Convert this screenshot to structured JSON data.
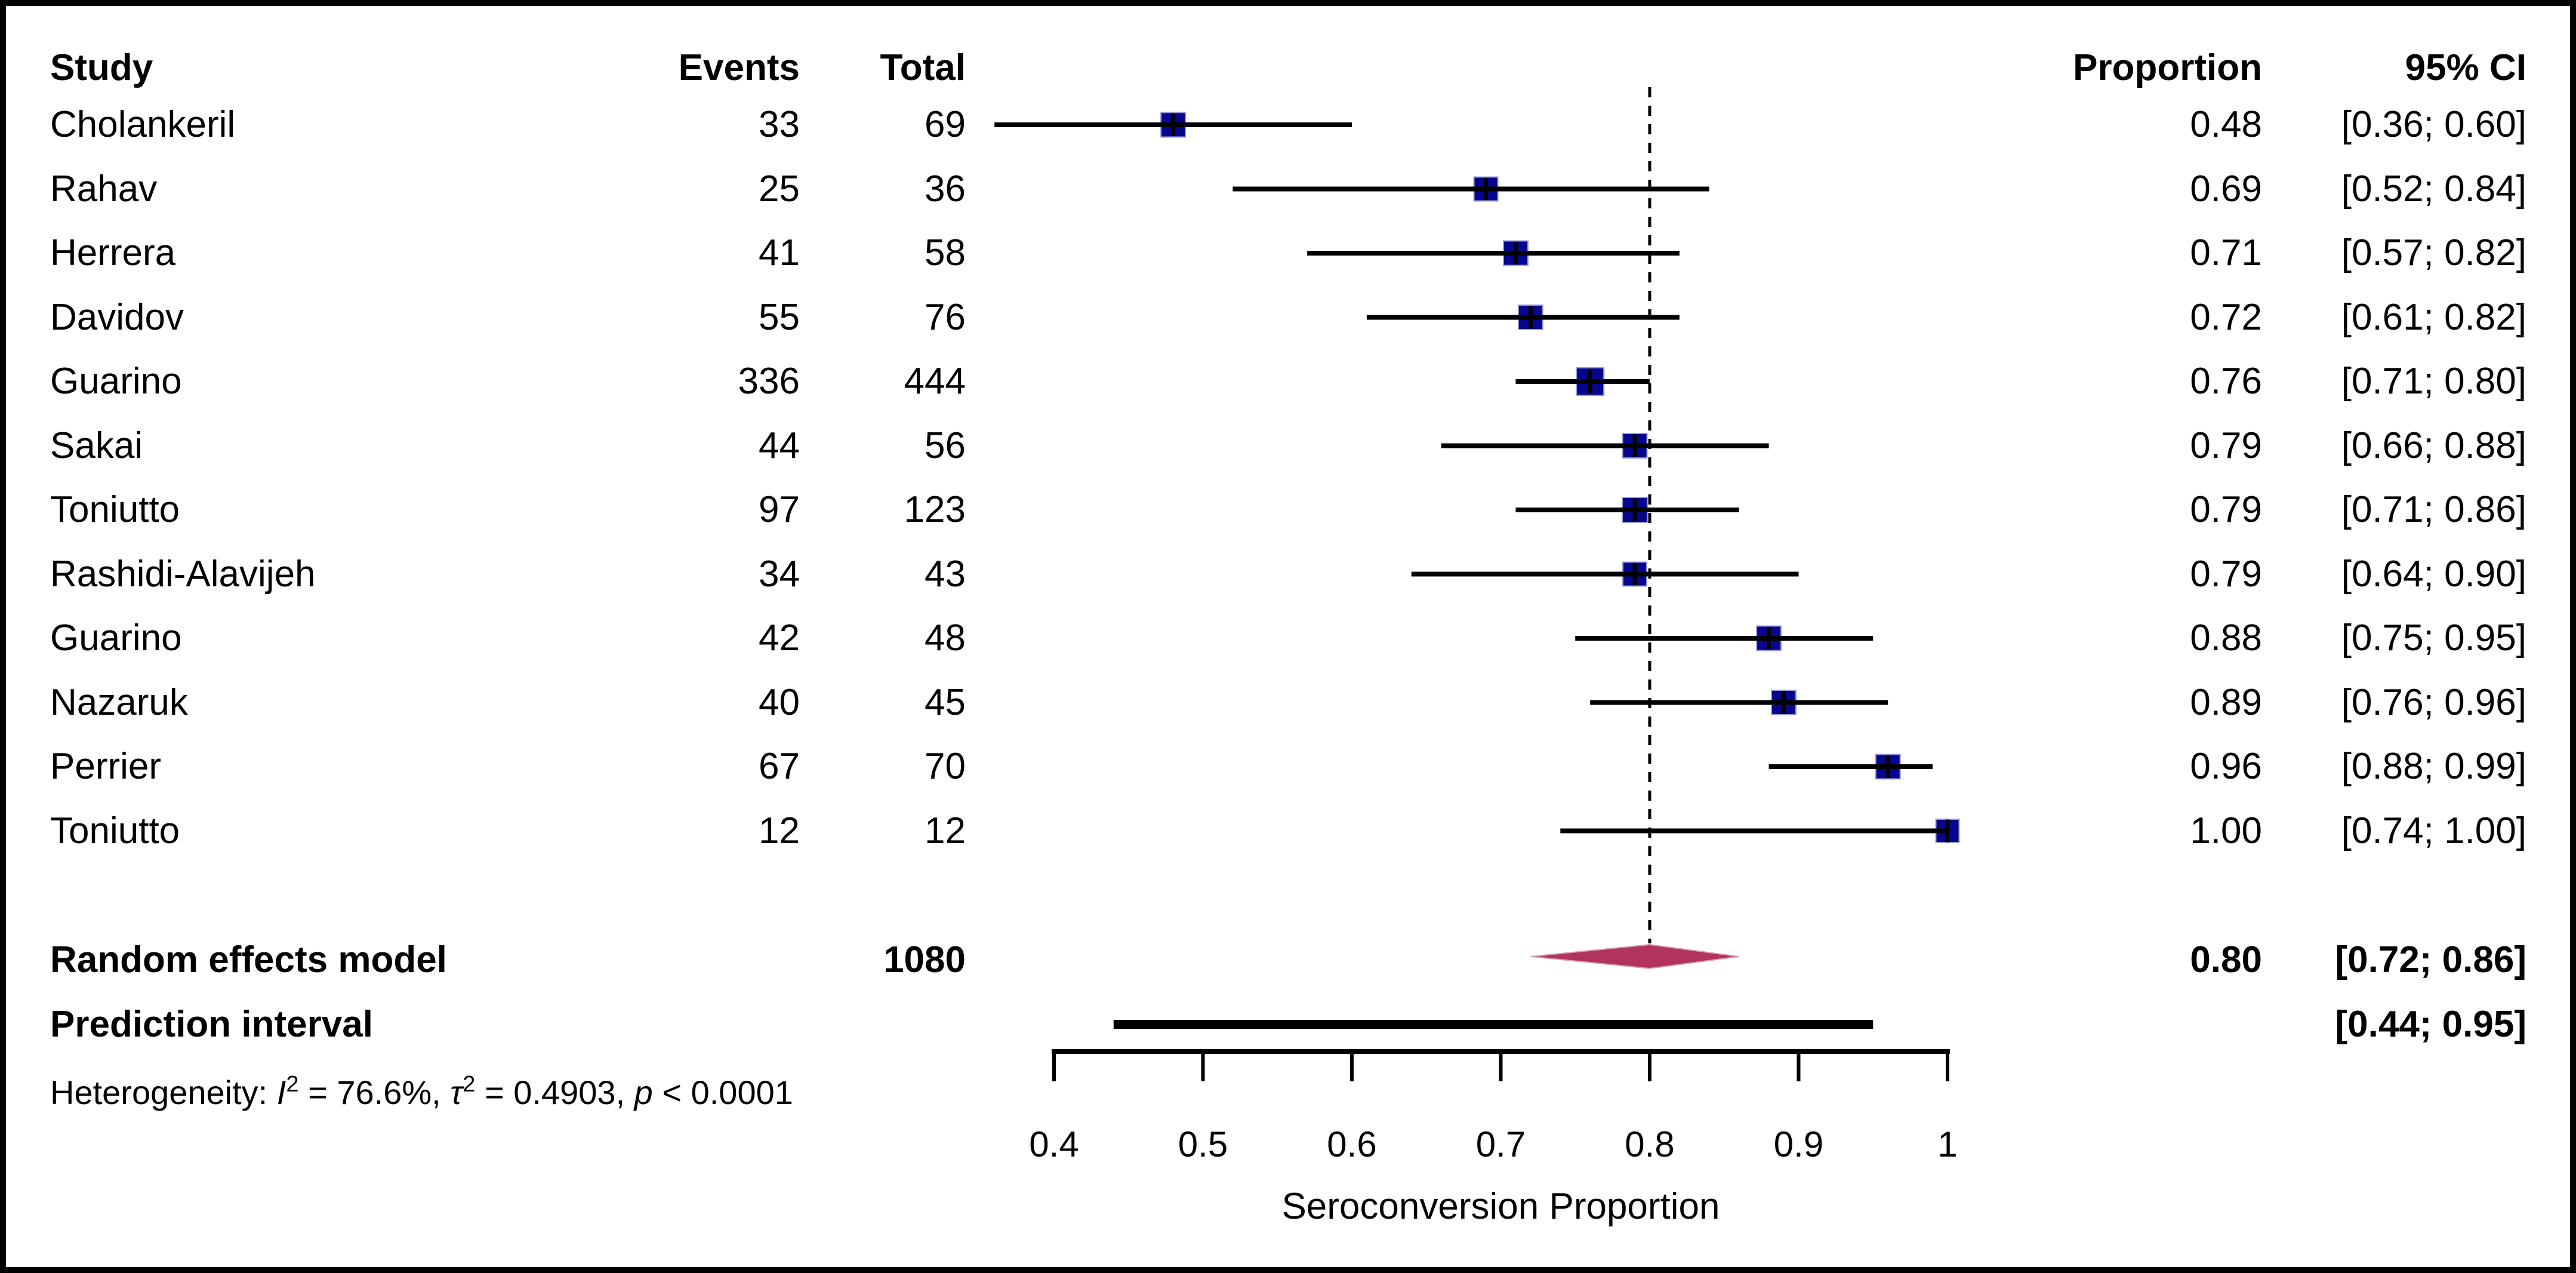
{
  "table": {
    "headers": {
      "study": "Study",
      "events": "Events",
      "total": "Total",
      "proportion": "Proportion",
      "ci": "95% CI"
    }
  },
  "heterogeneity": {
    "text": "Heterogeneity: I² = 76.6%, τ² = 0.4903, p < 0.0001",
    "segments": [
      {
        "text": "Heterogeneity: "
      },
      {
        "text": "I",
        "italic": true
      },
      {
        "text": "2",
        "sup": true
      },
      {
        "text": " = 76.6%, "
      },
      {
        "text": "τ",
        "italic": true
      },
      {
        "text": "2",
        "sup": true
      },
      {
        "text": " = 0.4903, "
      },
      {
        "text": "p",
        "italic": true
      },
      {
        "text": " < 0.0001"
      }
    ]
  },
  "chart_data": {
    "type": "forest",
    "xlabel": "Seroconversion Proportion",
    "x_ticks": [
      0.4,
      0.5,
      0.6,
      0.7,
      0.8,
      0.9,
      1
    ],
    "x_tick_labels": [
      "0.4",
      "0.5",
      "0.6",
      "0.7",
      "0.8",
      "0.9",
      "1"
    ],
    "xlim": [
      0.4,
      1.0
    ],
    "reference_line": 0.8,
    "studies": [
      {
        "name": "Cholankeril",
        "events": 33,
        "total": 69,
        "proportion": 0.48,
        "ci_lo": 0.36,
        "ci_hi": 0.6,
        "proportion_label": "0.48",
        "ci_label": "[0.36; 0.60]"
      },
      {
        "name": "Rahav",
        "events": 25,
        "total": 36,
        "proportion": 0.69,
        "ci_lo": 0.52,
        "ci_hi": 0.84,
        "proportion_label": "0.69",
        "ci_label": "[0.52; 0.84]"
      },
      {
        "name": "Herrera",
        "events": 41,
        "total": 58,
        "proportion": 0.71,
        "ci_lo": 0.57,
        "ci_hi": 0.82,
        "proportion_label": "0.71",
        "ci_label": "[0.57; 0.82]"
      },
      {
        "name": "Davidov",
        "events": 55,
        "total": 76,
        "proportion": 0.72,
        "ci_lo": 0.61,
        "ci_hi": 0.82,
        "proportion_label": "0.72",
        "ci_label": "[0.61; 0.82]"
      },
      {
        "name": "Guarino",
        "events": 336,
        "total": 444,
        "proportion": 0.76,
        "ci_lo": 0.71,
        "ci_hi": 0.8,
        "proportion_label": "0.76",
        "ci_label": "[0.71; 0.80]"
      },
      {
        "name": "Sakai",
        "events": 44,
        "total": 56,
        "proportion": 0.79,
        "ci_lo": 0.66,
        "ci_hi": 0.88,
        "proportion_label": "0.79",
        "ci_label": "[0.66; 0.88]"
      },
      {
        "name": "Toniutto",
        "events": 97,
        "total": 123,
        "proportion": 0.79,
        "ci_lo": 0.71,
        "ci_hi": 0.86,
        "proportion_label": "0.79",
        "ci_label": "[0.71; 0.86]"
      },
      {
        "name": "Rashidi-Alavijeh",
        "events": 34,
        "total": 43,
        "proportion": 0.79,
        "ci_lo": 0.64,
        "ci_hi": 0.9,
        "proportion_label": "0.79",
        "ci_label": "[0.64; 0.90]"
      },
      {
        "name": "Guarino",
        "events": 42,
        "total": 48,
        "proportion": 0.88,
        "ci_lo": 0.75,
        "ci_hi": 0.95,
        "proportion_label": "0.88",
        "ci_label": "[0.75; 0.95]"
      },
      {
        "name": "Nazaruk",
        "events": 40,
        "total": 45,
        "proportion": 0.89,
        "ci_lo": 0.76,
        "ci_hi": 0.96,
        "proportion_label": "0.89",
        "ci_label": "[0.76; 0.96]"
      },
      {
        "name": "Perrier",
        "events": 67,
        "total": 70,
        "proportion": 0.96,
        "ci_lo": 0.88,
        "ci_hi": 0.99,
        "proportion_label": "0.96",
        "ci_label": "[0.88; 0.99]"
      },
      {
        "name": "Toniutto",
        "events": 12,
        "total": 12,
        "proportion": 1.0,
        "ci_lo": 0.74,
        "ci_hi": 1.0,
        "proportion_label": "1.00",
        "ci_label": "[0.74; 1.00]"
      }
    ],
    "summary": {
      "label": "Random effects model",
      "total": "1080",
      "proportion": 0.8,
      "ci_lo": 0.72,
      "ci_hi": 0.86,
      "proportion_label": "0.80",
      "ci_label": "[0.72; 0.86]"
    },
    "prediction_interval": {
      "label": "Prediction interval",
      "ci_lo": 0.44,
      "ci_hi": 0.95,
      "ci_label": "[0.44; 0.95]"
    },
    "colors": {
      "study_square": "#06068e",
      "square_edge": "#9a9ad8",
      "summary_diamond": "#b23360",
      "diamond_edge": "#d9a0b5",
      "ci_line": "#000000",
      "reference_line": "#000000",
      "axis": "#000000"
    },
    "legend_position": "none",
    "grid": false
  }
}
